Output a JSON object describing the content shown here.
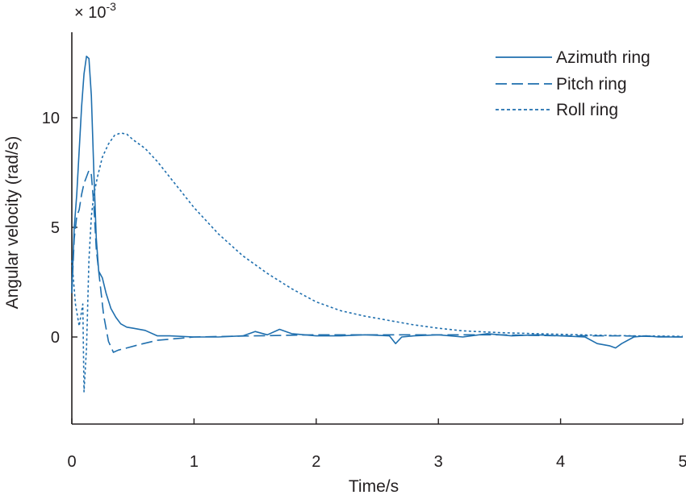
{
  "chart_data": {
    "type": "line",
    "title": "",
    "xlabel": "Time/s",
    "ylabel": "Angular velocity (rad/s)",
    "y_exponent": "× 10",
    "y_exponent_power": "-3",
    "xlim": [
      0,
      5
    ],
    "ylim": [
      -4,
      14
    ],
    "x_ticks": [
      0,
      1,
      2,
      3,
      4,
      5
    ],
    "x_tick_labels": [
      "0",
      "1",
      "2",
      "3",
      "4",
      "5"
    ],
    "y_ticks": [
      0,
      5,
      10
    ],
    "y_tick_labels": [
      "0",
      "5",
      "10"
    ],
    "grid": false,
    "legend_position": "top-right",
    "color": "#1f6fae",
    "series": [
      {
        "name": "Azimuth ring",
        "style": "solid",
        "x": [
          0,
          0.02,
          0.04,
          0.06,
          0.08,
          0.1,
          0.12,
          0.14,
          0.16,
          0.18,
          0.2,
          0.22,
          0.25,
          0.28,
          0.32,
          0.36,
          0.4,
          0.45,
          0.5,
          0.6,
          0.7,
          0.8,
          1.0,
          1.2,
          1.4,
          1.5,
          1.6,
          1.7,
          1.8,
          2.0,
          2.2,
          2.4,
          2.6,
          2.65,
          2.7,
          2.8,
          3.0,
          3.2,
          3.4,
          3.6,
          3.8,
          4.0,
          4.2,
          4.3,
          4.4,
          4.45,
          4.5,
          4.6,
          4.7,
          4.8,
          5.0
        ],
        "values": [
          2.2,
          5.0,
          6.5,
          8.5,
          10.5,
          12.0,
          12.8,
          12.7,
          11.0,
          7.5,
          4.5,
          3.0,
          2.7,
          2.0,
          1.3,
          0.9,
          0.6,
          0.45,
          0.4,
          0.3,
          0.05,
          0.05,
          0.0,
          0.0,
          0.05,
          0.25,
          0.1,
          0.35,
          0.15,
          0.05,
          0.05,
          0.1,
          0.05,
          -0.3,
          0.0,
          0.05,
          0.1,
          0.0,
          0.15,
          0.05,
          0.1,
          0.05,
          0.0,
          -0.3,
          -0.4,
          -0.5,
          -0.3,
          0.0,
          0.05,
          0.0,
          0.0
        ]
      },
      {
        "name": "Pitch ring",
        "style": "dashed",
        "x": [
          0,
          0.02,
          0.04,
          0.06,
          0.08,
          0.1,
          0.12,
          0.14,
          0.16,
          0.18,
          0.2,
          0.23,
          0.26,
          0.3,
          0.34,
          0.38,
          0.45,
          0.55,
          0.7,
          0.9,
          1.0,
          1.5,
          2.0,
          2.5,
          3.0,
          3.5,
          4.0,
          4.5,
          5.0
        ],
        "values": [
          2.0,
          4.5,
          5.5,
          5.8,
          6.5,
          7.0,
          7.3,
          7.6,
          7.4,
          6.0,
          4.0,
          2.5,
          1.0,
          -0.2,
          -0.7,
          -0.6,
          -0.5,
          -0.35,
          -0.15,
          -0.05,
          0.0,
          0.05,
          0.1,
          0.1,
          0.1,
          0.1,
          0.05,
          0.05,
          0.0
        ]
      },
      {
        "name": "Roll ring",
        "style": "dotted",
        "x": [
          0,
          0.03,
          0.06,
          0.09,
          0.1,
          0.12,
          0.14,
          0.16,
          0.18,
          0.21,
          0.25,
          0.3,
          0.35,
          0.4,
          0.45,
          0.5,
          0.6,
          0.7,
          0.8,
          0.9,
          1.0,
          1.2,
          1.4,
          1.6,
          1.8,
          2.0,
          2.2,
          2.4,
          2.6,
          2.8,
          3.0,
          3.2,
          3.5,
          3.8,
          4.0,
          4.3,
          4.6,
          5.0
        ],
        "values": [
          3.5,
          1.5,
          0.5,
          1.5,
          -2.5,
          -0.5,
          3.5,
          5.5,
          6.5,
          7.3,
          8.2,
          8.8,
          9.2,
          9.3,
          9.25,
          9.0,
          8.6,
          8.0,
          7.3,
          6.6,
          5.9,
          4.7,
          3.7,
          2.9,
          2.2,
          1.6,
          1.2,
          0.95,
          0.75,
          0.55,
          0.4,
          0.28,
          0.2,
          0.15,
          0.12,
          0.08,
          0.05,
          0.03
        ]
      }
    ]
  }
}
